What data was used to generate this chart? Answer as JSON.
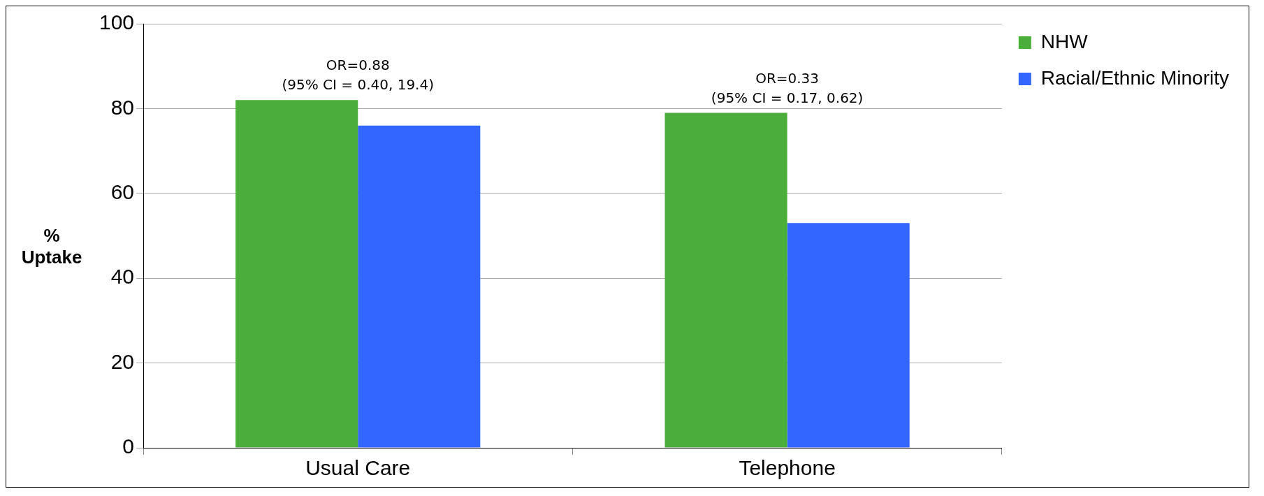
{
  "chart_data": {
    "type": "bar",
    "ylabel": "%\nUptake",
    "categories": [
      "Usual Care",
      "Telephone"
    ],
    "series": [
      {
        "name": "NHW",
        "color": "#4cae3a",
        "values": [
          82,
          79
        ]
      },
      {
        "name": "Racial/Ethnic Minority",
        "color": "#3366ff",
        "values": [
          76,
          53
        ]
      }
    ],
    "ylim": [
      0,
      100
    ],
    "yticks": [
      0,
      20,
      40,
      60,
      80,
      100
    ],
    "grid": "y",
    "legend": "top right",
    "annotations": [
      "OR=0.88\n(95% CI = 0.40, 19.4)",
      "OR=0.33\n(95% CI = 0.17, 0.62)"
    ]
  }
}
